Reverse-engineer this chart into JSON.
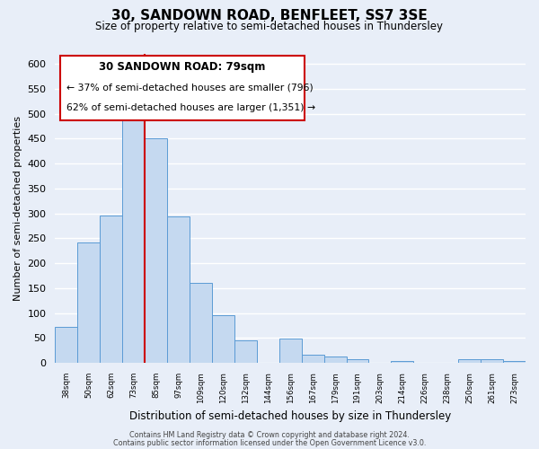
{
  "title": "30, SANDOWN ROAD, BENFLEET, SS7 3SE",
  "subtitle": "Size of property relative to semi-detached houses in Thundersley",
  "xlabel": "Distribution of semi-detached houses by size in Thundersley",
  "ylabel": "Number of semi-detached properties",
  "footer_line1": "Contains HM Land Registry data © Crown copyright and database right 2024.",
  "footer_line2": "Contains public sector information licensed under the Open Government Licence v3.0.",
  "annotation_title": "30 SANDOWN ROAD: 79sqm",
  "annotation_line1": "← 37% of semi-detached houses are smaller (796)",
  "annotation_line2": "62% of semi-detached houses are larger (1,351) →",
  "bar_labels": [
    "38sqm",
    "50sqm",
    "62sqm",
    "73sqm",
    "85sqm",
    "97sqm",
    "109sqm",
    "120sqm",
    "132sqm",
    "144sqm",
    "156sqm",
    "167sqm",
    "179sqm",
    "191sqm",
    "203sqm",
    "214sqm",
    "226sqm",
    "238sqm",
    "250sqm",
    "261sqm",
    "273sqm"
  ],
  "bar_values": [
    72,
    241,
    295,
    487,
    450,
    293,
    161,
    96,
    46,
    0,
    48,
    17,
    13,
    8,
    0,
    3,
    0,
    0,
    8,
    8,
    3
  ],
  "bar_color": "#c5d9f0",
  "bar_edge_color": "#5b9bd5",
  "line_color": "#cc0000",
  "line_x_index": 4,
  "ylim": [
    0,
    620
  ],
  "yticks": [
    0,
    50,
    100,
    150,
    200,
    250,
    300,
    350,
    400,
    450,
    500,
    550,
    600
  ],
  "background_color": "#e8eef8",
  "grid_color": "#ffffff",
  "annotation_box_color": "#ffffff",
  "annotation_box_edge": "#cc0000"
}
